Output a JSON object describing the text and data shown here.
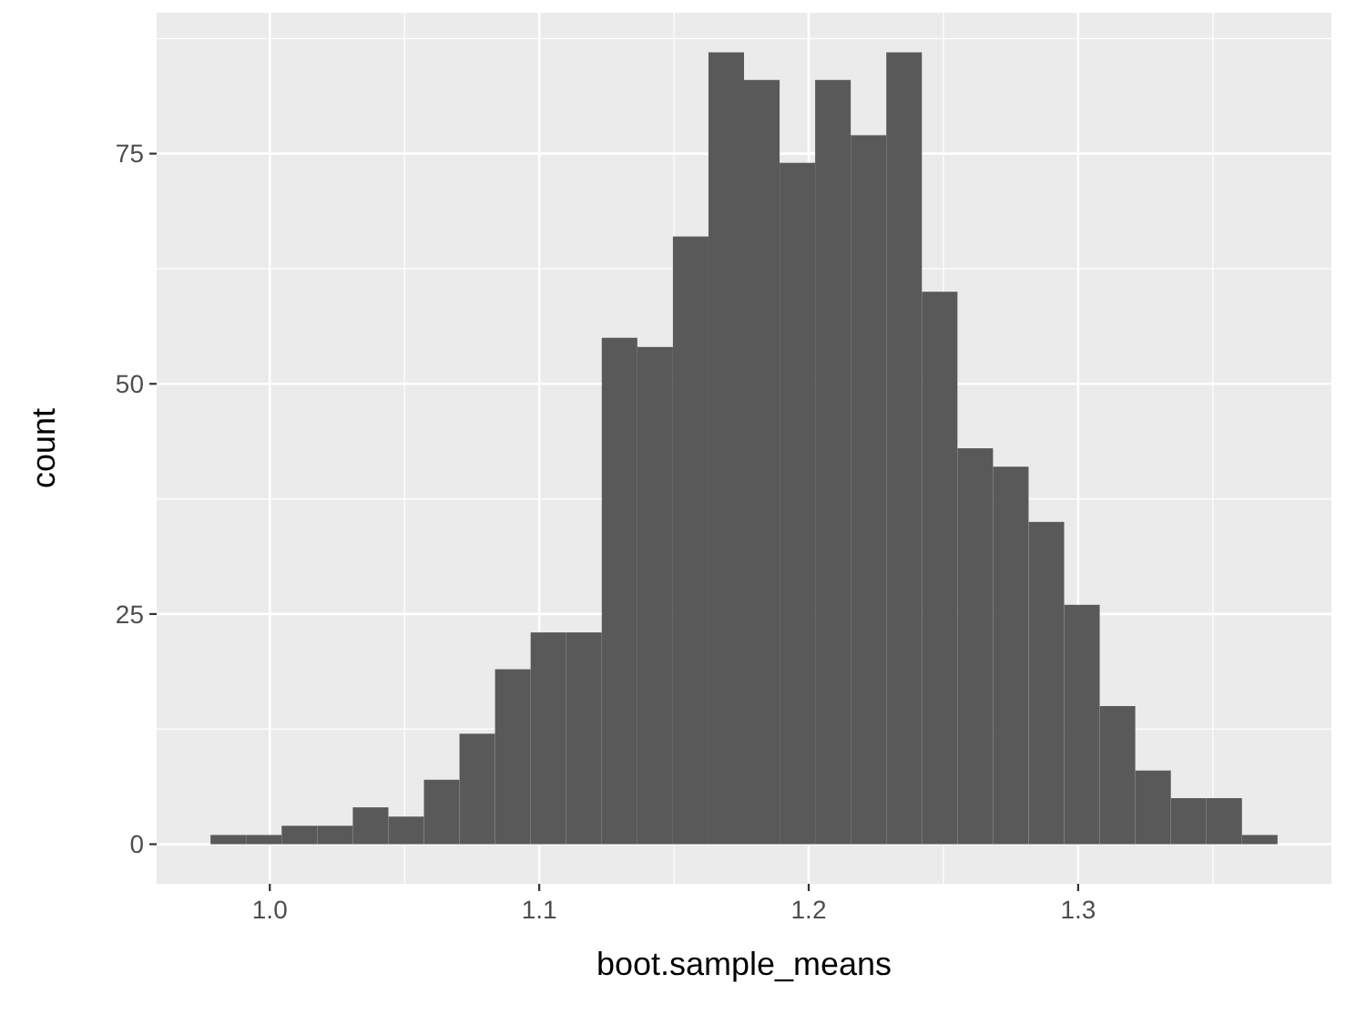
{
  "chart_data": {
    "type": "histogram",
    "xlabel": "boot.sample_means",
    "ylabel": "count",
    "bins": [
      0.978,
      0.9912,
      1.0044,
      1.0176,
      1.0308,
      1.044,
      1.0572,
      1.0704,
      1.0836,
      1.0968,
      1.11,
      1.1232,
      1.1364,
      1.1496,
      1.1628,
      1.176,
      1.1892,
      1.2024,
      1.2156,
      1.2288,
      1.242,
      1.2552,
      1.2684,
      1.2816,
      1.2948,
      1.308,
      1.3212,
      1.3344,
      1.3476,
      1.3608,
      1.374
    ],
    "values": [
      1,
      1,
      2,
      2,
      4,
      3,
      7,
      12,
      19,
      23,
      23,
      55,
      54,
      66,
      86,
      83,
      74,
      83,
      77,
      86,
      60,
      43,
      41,
      35,
      26,
      15,
      8,
      5,
      5,
      1
    ],
    "color": "#595959",
    "xlim": [
      0.958,
      1.394
    ],
    "ylim": [
      -4.3,
      90.3
    ],
    "xticks": [
      {
        "value": 1.0,
        "label": "1.0"
      },
      {
        "value": 1.1,
        "label": "1.1"
      },
      {
        "value": 1.2,
        "label": "1.2"
      },
      {
        "value": 1.3,
        "label": "1.3"
      }
    ],
    "yticks": [
      0,
      25,
      50,
      75
    ],
    "grid": true
  }
}
